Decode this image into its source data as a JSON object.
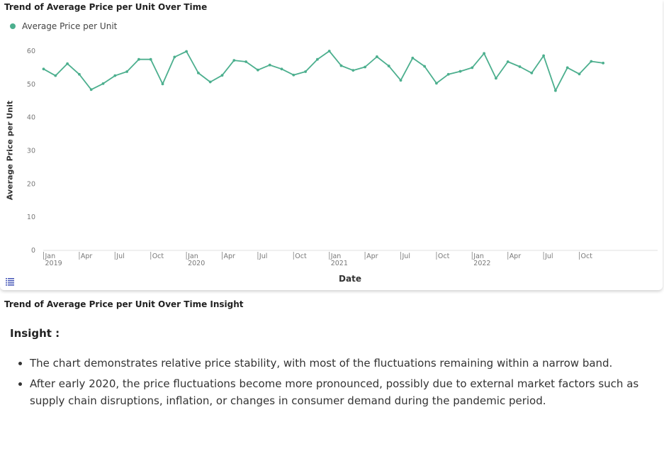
{
  "chart_card": {
    "title": "Trend of Average Price per Unit Over Time",
    "legend_label": "Average Price per Unit",
    "menu_icon": "list-icon"
  },
  "chart_data": {
    "type": "line",
    "title": "Trend of Average Price per Unit Over Time",
    "xlabel": "Date",
    "ylabel": "Average Price per Unit",
    "ylim": [
      0,
      60
    ],
    "y_ticks": [
      0,
      10,
      20,
      30,
      40,
      50,
      60
    ],
    "x_ticks": [
      {
        "date": "2019-01",
        "label": "Jan",
        "year": "2019"
      },
      {
        "date": "2019-04",
        "label": "Apr"
      },
      {
        "date": "2019-07",
        "label": "Jul"
      },
      {
        "date": "2019-10",
        "label": "Oct"
      },
      {
        "date": "2020-01",
        "label": "Jan",
        "year": "2020"
      },
      {
        "date": "2020-04",
        "label": "Apr"
      },
      {
        "date": "2020-07",
        "label": "Jul"
      },
      {
        "date": "2020-10",
        "label": "Oct"
      },
      {
        "date": "2021-01",
        "label": "Jan",
        "year": "2021"
      },
      {
        "date": "2021-04",
        "label": "Apr"
      },
      {
        "date": "2021-07",
        "label": "Jul"
      },
      {
        "date": "2021-10",
        "label": "Oct"
      },
      {
        "date": "2022-01",
        "label": "Jan",
        "year": "2022"
      },
      {
        "date": "2022-04",
        "label": "Apr"
      },
      {
        "date": "2022-07",
        "label": "Jul"
      },
      {
        "date": "2022-10",
        "label": "Oct"
      }
    ],
    "grid": false,
    "legend_position": "top-left",
    "series": [
      {
        "name": "Average Price per Unit",
        "color": "#4caf8e",
        "x": [
          "2019-01",
          "2019-02",
          "2019-03",
          "2019-04",
          "2019-05",
          "2019-06",
          "2019-07",
          "2019-08",
          "2019-09",
          "2019-10",
          "2019-11",
          "2019-12",
          "2020-01",
          "2020-02",
          "2020-03",
          "2020-04",
          "2020-05",
          "2020-06",
          "2020-07",
          "2020-08",
          "2020-09",
          "2020-10",
          "2020-11",
          "2020-12",
          "2021-01",
          "2021-02",
          "2021-03",
          "2021-04",
          "2021-05",
          "2021-06",
          "2021-07",
          "2021-08",
          "2021-09",
          "2021-10",
          "2021-11",
          "2021-12",
          "2022-01",
          "2022-02",
          "2022-03",
          "2022-04",
          "2022-05",
          "2022-06",
          "2022-07",
          "2022-08",
          "2022-09",
          "2022-10",
          "2022-11",
          "2022-12"
        ],
        "values": [
          54.6,
          52.6,
          56.2,
          53.0,
          48.4,
          50.2,
          52.6,
          53.8,
          57.5,
          57.5,
          50.1,
          58.2,
          59.9,
          53.4,
          50.7,
          52.7,
          57.2,
          56.8,
          54.3,
          55.8,
          54.6,
          52.8,
          53.8,
          57.5,
          60.0,
          55.6,
          54.2,
          55.2,
          58.3,
          55.5,
          51.2,
          57.9,
          55.4,
          50.3,
          53.0,
          53.9,
          55.0,
          59.3,
          51.8,
          56.8,
          55.3,
          53.4,
          58.6,
          48.1,
          55.0,
          53.1,
          56.9,
          56.4
        ]
      }
    ]
  },
  "insight": {
    "heading": "Trend of Average Price per Unit Over Time Insight",
    "label": "Insight :",
    "bullets": [
      "The chart demonstrates relative price stability, with most of the fluctuations remaining within a narrow band.",
      "After early 2020, the price fluctuations become more pronounced, possibly due to external market factors such as supply chain disruptions, inflation, or changes in consumer demand during the pandemic period."
    ]
  }
}
